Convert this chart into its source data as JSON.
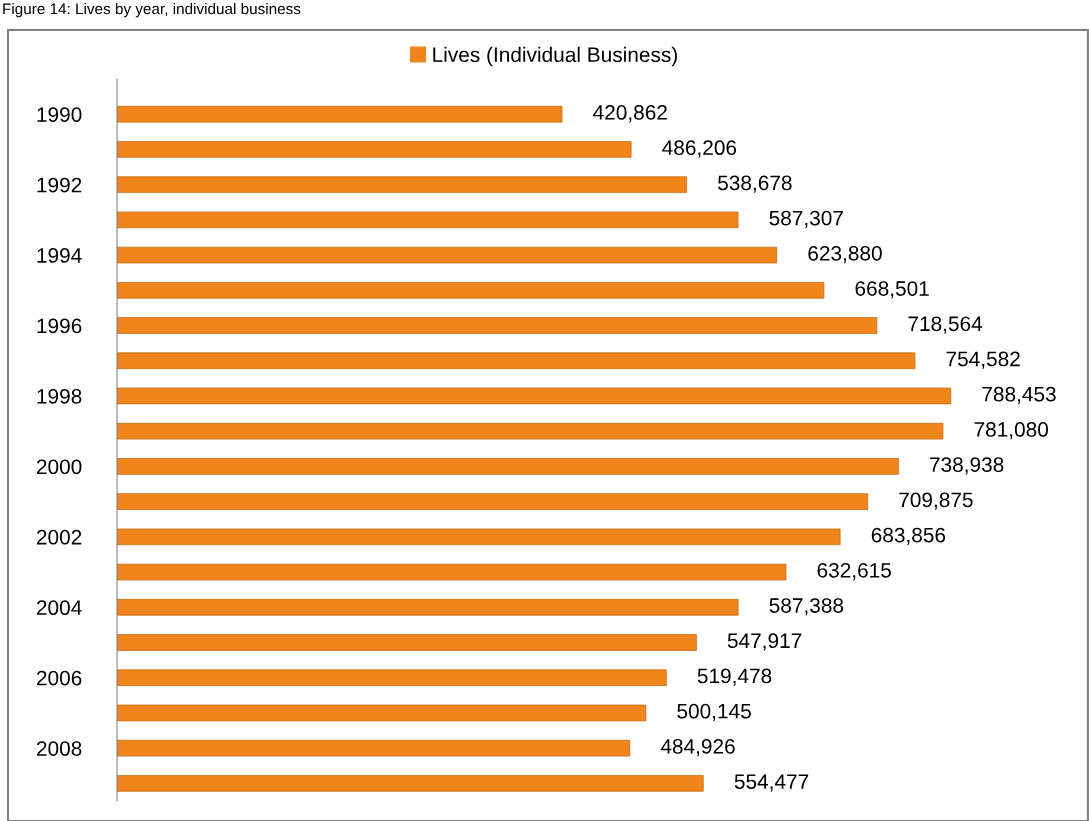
{
  "chart_data": {
    "type": "bar",
    "orientation": "horizontal",
    "title": "Figure 14: Lives by year, individual business",
    "categories": [
      "1990",
      null,
      "1992",
      null,
      "1994",
      null,
      "1996",
      null,
      "1998",
      null,
      "2000",
      null,
      "2002",
      null,
      "2004",
      null,
      "2006",
      null,
      "2008",
      null
    ],
    "series": [
      {
        "name": "Lives (Individual Business)",
        "color": "#f0851c",
        "values": [
          420862,
          486206,
          538678,
          587307,
          623880,
          668501,
          718564,
          754582,
          788453,
          781080,
          738938,
          709875,
          683856,
          632615,
          587388,
          547917,
          519478,
          500145,
          484926,
          554477
        ],
        "value_labels": [
          "420,862",
          "486,206",
          "538,678",
          "587,307",
          "623,880",
          "668,501",
          "718,564",
          "754,582",
          "788,453",
          "781,080",
          "738,938",
          "709,875",
          "683,856",
          "632,615",
          "587,388",
          "547,917",
          "519,478",
          "500,145",
          "484,926",
          "554,477"
        ]
      }
    ],
    "tick_labels": "y",
    "legend": "top",
    "grid": false
  }
}
